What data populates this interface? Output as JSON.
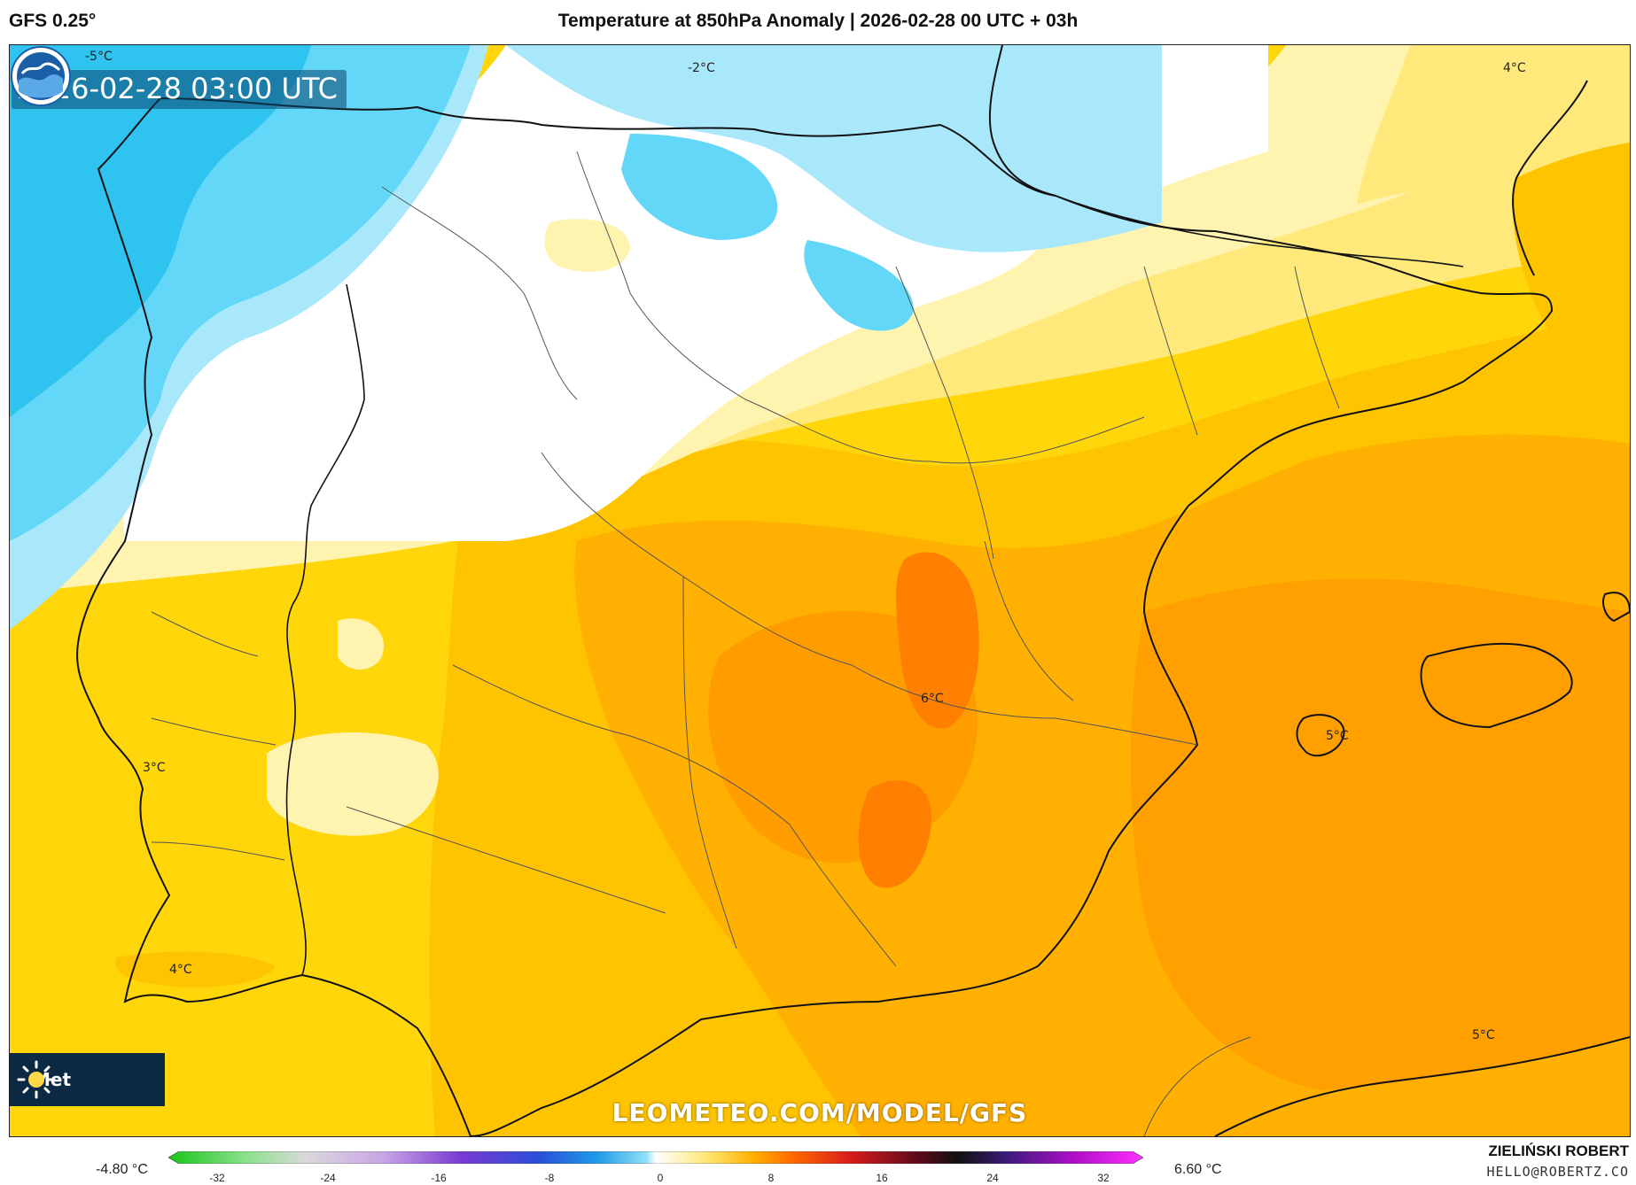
{
  "header": {
    "model": "GFS 0.25°",
    "title": "Temperature at 850hPa Anomaly | 2026-02-28 00 UTC + 03h"
  },
  "map": {
    "timestamp": "2026-02-28 03:00 UTC",
    "contour_labels": [
      "-5°C",
      "-2°C",
      "4°C",
      "6°C",
      "3°C",
      "4°C",
      "5°C",
      "5°C"
    ],
    "watermark": "LEOMETEO.COM/MODEL/GFS",
    "badge_text": "Met",
    "colors": {
      "deep_cold": "#2fc3f0",
      "cold": "#62d7f7",
      "cool": "#a9e8fb",
      "neutral": "#ffffff",
      "pale": "#fff3b0",
      "light_yellow": "#ffe97a",
      "yellow": "#ffd60a",
      "deep_yellow": "#ffc400",
      "orange_light": "#ffb000",
      "orange": "#ff9c00",
      "orange_dark": "#ff8000"
    }
  },
  "legend": {
    "min_label": "-4.80 °C",
    "max_label": "6.60 °C",
    "ticks": [
      "-32",
      "-24",
      "-16",
      "-8",
      "0",
      "8",
      "16",
      "24",
      "32"
    ]
  },
  "footer": {
    "author": "ZIELIŃSKI ROBERT",
    "email": "HELLO@ROBERTZ.CO"
  }
}
